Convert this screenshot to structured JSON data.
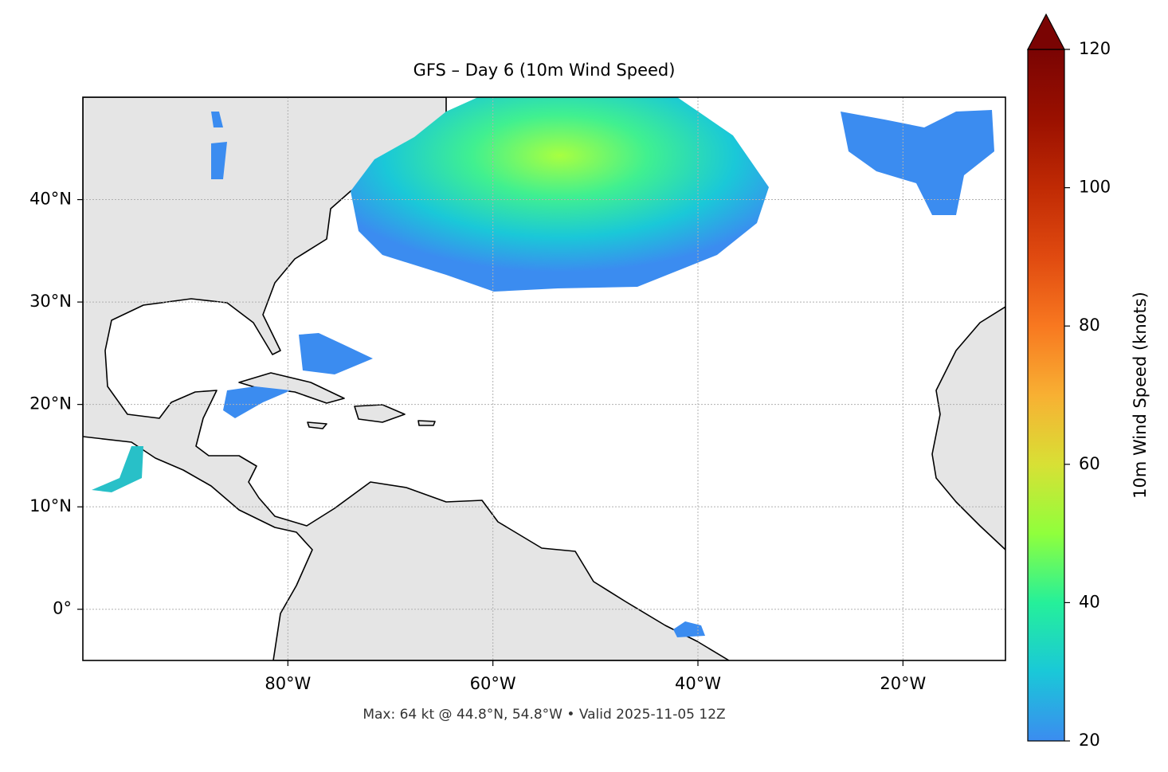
{
  "chart_data": {
    "type": "map",
    "title": "GFS – Day 6 (10m Wind Speed)",
    "footer": "Max: 64 kt @ 44.8°N, 54.8°W • Valid 2025-11-05 12Z",
    "xlim": [
      -100,
      -10
    ],
    "ylim": [
      -5,
      50
    ],
    "xticks": [
      {
        "value": -80,
        "label": "80°W"
      },
      {
        "value": -60,
        "label": "60°W"
      },
      {
        "value": -40,
        "label": "40°W"
      },
      {
        "value": -20,
        "label": "20°W"
      }
    ],
    "yticks": [
      {
        "value": 0,
        "label": "0°"
      },
      {
        "value": 10,
        "label": "10°N"
      },
      {
        "value": 20,
        "label": "20°N"
      },
      {
        "value": 30,
        "label": "30°N"
      },
      {
        "value": 40,
        "label": "40°N"
      }
    ],
    "grid": true,
    "colorbar": {
      "label": "10m Wind Speed (knots)",
      "lim": [
        20,
        120
      ],
      "ticks": [
        20,
        40,
        60,
        80,
        100,
        120
      ],
      "colors": [
        "#3b8cf0",
        "#1ac8d8",
        "#25f09a",
        "#90ff3c",
        "#d8e035",
        "#f8b033",
        "#f87820",
        "#e04a10",
        "#c02a04",
        "#9a1000",
        "#7a0403"
      ]
    }
  }
}
